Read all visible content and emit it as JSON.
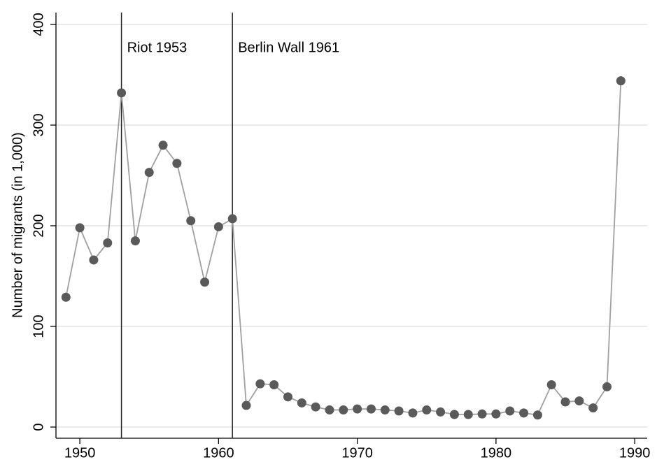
{
  "chart_data": {
    "type": "line",
    "y_label": "Number of migrants (in 1,000)",
    "x": [
      1949,
      1950,
      1951,
      1952,
      1953,
      1954,
      1955,
      1956,
      1957,
      1958,
      1959,
      1960,
      1961,
      1962,
      1963,
      1964,
      1965,
      1966,
      1967,
      1968,
      1969,
      1970,
      1971,
      1972,
      1973,
      1974,
      1975,
      1976,
      1977,
      1978,
      1979,
      1980,
      1981,
      1982,
      1983,
      1984,
      1985,
      1986,
      1987,
      1988,
      1989
    ],
    "values": [
      129,
      198,
      166,
      183,
      332,
      185,
      253,
      280,
      262,
      205,
      144,
      199,
      207,
      21.5,
      43,
      42,
      30,
      24,
      20,
      17,
      17,
      18,
      18,
      17,
      16,
      14,
      17,
      15,
      12.5,
      12.5,
      13,
      13,
      16,
      14,
      12,
      42,
      25,
      26,
      19,
      40,
      344
    ],
    "line_color": "#a0a0a0",
    "marker_color": "#5a5a5a",
    "xlim": [
      1948.28,
      1990.9
    ],
    "ylim": [
      -11.1,
      411.8
    ],
    "xticks": [
      1950,
      1960,
      1970,
      1980,
      1990
    ],
    "yticks": [
      0,
      100,
      200,
      300,
      400
    ],
    "grid": true,
    "annotations": [
      {
        "x": 1953,
        "label": "Riot 1953"
      },
      {
        "x": 1961,
        "label": "Berlin Wall 1961"
      }
    ]
  }
}
